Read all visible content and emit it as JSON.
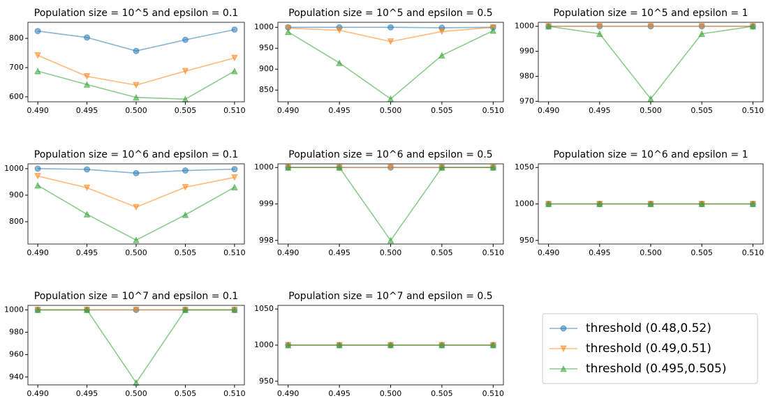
{
  "chart_data": [
    {
      "type": "line",
      "title": "Population size = 10^5 and epsilon = 0.1",
      "x": [
        0.49,
        0.495,
        0.5,
        0.505,
        0.51
      ],
      "xlim": [
        0.489,
        0.511
      ],
      "xticks": [
        {
          "value": 0.49,
          "label": "0.490"
        },
        {
          "value": 0.495,
          "label": "0.495"
        },
        {
          "value": 0.5,
          "label": "0.500"
        },
        {
          "value": 0.505,
          "label": "0.505"
        },
        {
          "value": 0.51,
          "label": "0.510"
        }
      ],
      "ylim": [
        583,
        855
      ],
      "yticks": [
        600,
        700,
        800
      ],
      "series": [
        {
          "values": [
            825,
            803,
            757,
            795,
            830
          ]
        },
        {
          "values": [
            742,
            670,
            640,
            688,
            733
          ]
        },
        {
          "values": [
            688,
            642,
            598,
            592,
            688
          ]
        }
      ]
    },
    {
      "type": "line",
      "title": "Population size = 10^5 and epsilon = 0.5",
      "x": [
        0.49,
        0.495,
        0.5,
        0.505,
        0.51
      ],
      "xlim": [
        0.489,
        0.511
      ],
      "xticks": [
        {
          "value": 0.49,
          "label": "0.490"
        },
        {
          "value": 0.495,
          "label": "0.495"
        },
        {
          "value": 0.5,
          "label": "0.500"
        },
        {
          "value": 0.505,
          "label": "0.505"
        },
        {
          "value": 0.51,
          "label": "0.510"
        }
      ],
      "ylim": [
        822,
        1012
      ],
      "yticks": [
        850,
        900,
        950,
        1000
      ],
      "series": [
        {
          "values": [
            1000,
            1000,
            1000,
            999,
            1000
          ]
        },
        {
          "values": [
            998,
            993,
            966,
            990,
            1000
          ]
        },
        {
          "values": [
            989,
            915,
            829,
            933,
            992
          ]
        }
      ]
    },
    {
      "type": "line",
      "title": "Population size = 10^5 and epsilon = 1",
      "x": [
        0.49,
        0.495,
        0.5,
        0.505,
        0.51
      ],
      "xlim": [
        0.489,
        0.511
      ],
      "xticks": [
        {
          "value": 0.49,
          "label": "0.490"
        },
        {
          "value": 0.495,
          "label": "0.495"
        },
        {
          "value": 0.5,
          "label": "0.500"
        },
        {
          "value": 0.505,
          "label": "0.505"
        },
        {
          "value": 0.51,
          "label": "0.510"
        }
      ],
      "ylim": [
        969.8,
        1001.6
      ],
      "yticks": [
        970,
        980,
        990,
        1000
      ],
      "series": [
        {
          "values": [
            1000,
            1000,
            1000,
            1000,
            1000
          ]
        },
        {
          "values": [
            1000,
            1000,
            1000,
            1000,
            1000
          ]
        },
        {
          "values": [
            1000,
            997,
            971,
            997,
            1000
          ]
        }
      ]
    },
    {
      "type": "line",
      "title": "Population size = 10^6 and epsilon = 0.1",
      "x": [
        0.49,
        0.495,
        0.5,
        0.505,
        0.51
      ],
      "xlim": [
        0.489,
        0.511
      ],
      "xticks": [
        {
          "value": 0.49,
          "label": "0.490"
        },
        {
          "value": 0.495,
          "label": "0.495"
        },
        {
          "value": 0.5,
          "label": "0.500"
        },
        {
          "value": 0.505,
          "label": "0.505"
        },
        {
          "value": 0.51,
          "label": "0.510"
        }
      ],
      "ylim": [
        716,
        1018
      ],
      "yticks": [
        800,
        900,
        1000
      ],
      "series": [
        {
          "values": [
            1000,
            997,
            983,
            993,
            998
          ]
        },
        {
          "values": [
            972,
            928,
            855,
            930,
            967
          ]
        },
        {
          "values": [
            937,
            828,
            731,
            826,
            930
          ]
        }
      ]
    },
    {
      "type": "line",
      "title": "Population size = 10^6 and epsilon = 0.5",
      "x": [
        0.49,
        0.495,
        0.5,
        0.505,
        0.51
      ],
      "xlim": [
        0.489,
        0.511
      ],
      "xticks": [
        {
          "value": 0.49,
          "label": "0.490"
        },
        {
          "value": 0.495,
          "label": "0.495"
        },
        {
          "value": 0.5,
          "label": "0.500"
        },
        {
          "value": 0.505,
          "label": "0.505"
        },
        {
          "value": 0.51,
          "label": "0.510"
        }
      ],
      "ylim": [
        997.9,
        1000.1
      ],
      "yticks": [
        998,
        999,
        1000
      ],
      "series": [
        {
          "values": [
            1000,
            1000,
            1000,
            1000,
            1000
          ]
        },
        {
          "values": [
            1000,
            1000,
            1000,
            1000,
            1000
          ]
        },
        {
          "values": [
            1000,
            1000,
            998,
            1000,
            1000
          ]
        }
      ]
    },
    {
      "type": "line",
      "title": "Population size = 10^6 and epsilon = 1",
      "x": [
        0.49,
        0.495,
        0.5,
        0.505,
        0.51
      ],
      "xlim": [
        0.489,
        0.511
      ],
      "xticks": [
        {
          "value": 0.49,
          "label": "0.490"
        },
        {
          "value": 0.495,
          "label": "0.495"
        },
        {
          "value": 0.5,
          "label": "0.500"
        },
        {
          "value": 0.505,
          "label": "0.505"
        },
        {
          "value": 0.51,
          "label": "0.510"
        }
      ],
      "ylim": [
        945,
        1055
      ],
      "yticks": [
        950,
        1000,
        1050
      ],
      "series": [
        {
          "values": [
            1000,
            1000,
            1000,
            1000,
            1000
          ]
        },
        {
          "values": [
            1000,
            1000,
            1000,
            1000,
            1000
          ]
        },
        {
          "values": [
            1000,
            1000,
            1000,
            1000,
            1000
          ]
        }
      ]
    },
    {
      "type": "line",
      "title": "Population size = 10^7 and epsilon = 0.1",
      "x": [
        0.49,
        0.495,
        0.5,
        0.505,
        0.51
      ],
      "xlim": [
        0.489,
        0.511
      ],
      "xticks": [
        {
          "value": 0.49,
          "label": "0.490"
        },
        {
          "value": 0.495,
          "label": "0.495"
        },
        {
          "value": 0.5,
          "label": "0.500"
        },
        {
          "value": 0.505,
          "label": "0.505"
        },
        {
          "value": 0.51,
          "label": "0.510"
        }
      ],
      "ylim": [
        933,
        1004
      ],
      "yticks": [
        940,
        960,
        980,
        1000
      ],
      "series": [
        {
          "values": [
            1000,
            1000,
            1000,
            1000,
            1000
          ]
        },
        {
          "values": [
            1000,
            1000,
            1000,
            1000,
            1000
          ]
        },
        {
          "values": [
            1000,
            1000,
            935,
            1000,
            1000
          ]
        }
      ]
    },
    {
      "type": "line",
      "title": "Population size = 10^7 and epsilon = 0.5",
      "x": [
        0.49,
        0.495,
        0.5,
        0.505,
        0.51
      ],
      "xlim": [
        0.489,
        0.511
      ],
      "xticks": [
        {
          "value": 0.49,
          "label": "0.490"
        },
        {
          "value": 0.495,
          "label": "0.495"
        },
        {
          "value": 0.5,
          "label": "0.500"
        },
        {
          "value": 0.505,
          "label": "0.505"
        },
        {
          "value": 0.51,
          "label": "0.510"
        }
      ],
      "ylim": [
        945,
        1055
      ],
      "yticks": [
        950,
        1000,
        1050
      ],
      "series": [
        {
          "values": [
            1000,
            1000,
            1000,
            1000,
            1000
          ]
        },
        {
          "values": [
            1000,
            1000,
            1000,
            1000,
            1000
          ]
        },
        {
          "values": [
            1000,
            1000,
            1000,
            1000,
            1000
          ]
        }
      ]
    }
  ],
  "legend": {
    "series": [
      {
        "name": "threshold (0.48,0.52)",
        "color": "#1f77b4",
        "marker": "o"
      },
      {
        "name": "threshold (0.49,0.51)",
        "color": "#ff7f0e",
        "marker": "v"
      },
      {
        "name": "threshold (0.495,0.505)",
        "color": "#2ca02c",
        "marker": "^"
      }
    ]
  }
}
